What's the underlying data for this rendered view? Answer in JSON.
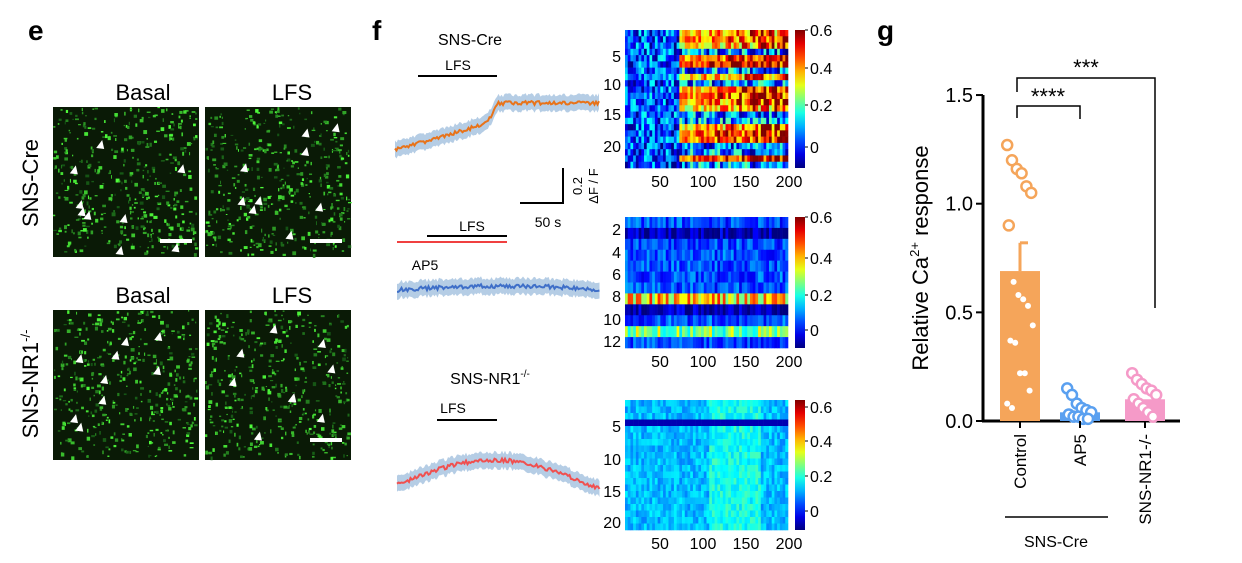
{
  "panels": {
    "e": {
      "letter": "e",
      "col_labels": [
        "Basal",
        "LFS"
      ],
      "row1_label": "SNS-Cre",
      "row2_label": "SNS-NR1",
      "row2_sup": "-/-"
    },
    "f": {
      "letter": "f",
      "traces": [
        {
          "title": "SNS-Cre",
          "stim": "LFS",
          "color": "#e8731a"
        },
        {
          "title": "",
          "stim": "LFS",
          "drug": "AP5",
          "color": "#3f6fc8"
        },
        {
          "title": "SNS-NR1",
          "title_sup": "-/-",
          "stim": "LFS",
          "color": "#f05050"
        }
      ],
      "scale_bar": {
        "y_value": "0.2",
        "y_unit": "ΔF / F",
        "x_label": "50 s"
      },
      "heatmaps": [
        {
          "rows": 22,
          "row_ticks": [
            "5",
            "10",
            "15",
            "20"
          ],
          "x_ticks": [
            "50",
            "100",
            "150",
            "200"
          ],
          "cbar_ticks": [
            "0",
            "0.2",
            "0.4",
            "0.6"
          ]
        },
        {
          "rows": 12,
          "row_ticks": [
            "2",
            "4",
            "6",
            "8",
            "10",
            "12"
          ],
          "x_ticks": [
            "50",
            "100",
            "150",
            "200"
          ],
          "cbar_ticks": [
            "0",
            "0.2",
            "0.4",
            "0.6"
          ]
        },
        {
          "rows": 20,
          "row_ticks": [
            "5",
            "10",
            "15",
            "20"
          ],
          "x_ticks": [
            "50",
            "100",
            "150",
            "200"
          ],
          "cbar_ticks": [
            "0",
            "0.2",
            "0.4",
            "0.6"
          ]
        }
      ]
    },
    "g": {
      "letter": "g",
      "group_label": "SNS-Cre"
    }
  },
  "chart_data": {
    "type": "bar",
    "title": "",
    "ylabel": "Relative Ca2+ response",
    "ylabel_main": "Relative Ca",
    "ylabel_sup": "2+",
    "ylabel_rest": " response",
    "ylim": [
      0,
      1.5
    ],
    "yticks": [
      "0.0",
      "0.5",
      "1.0",
      "1.5"
    ],
    "categories": [
      "Control",
      "AP5",
      "SNS-NR1-/-"
    ],
    "category_display": [
      {
        "main": "Control",
        "sup": ""
      },
      {
        "main": "AP5",
        "sup": ""
      },
      {
        "main": "SNS-NR1",
        "sup": "-/-"
      }
    ],
    "means": [
      0.69,
      0.04,
      0.1
    ],
    "sem_upper": [
      0.82,
      null,
      null
    ],
    "colors": [
      "#f5a55a",
      "#5aa0f0",
      "#f59ac8"
    ],
    "points": [
      [
        1.27,
        1.2,
        1.16,
        1.14,
        1.08,
        1.05,
        0.9,
        0.64,
        0.58,
        0.56,
        0.53,
        0.44,
        0.37,
        0.36,
        0.22,
        0.22,
        0.14,
        0.08,
        0.06
      ],
      [
        0.15,
        0.12,
        0.08,
        0.06,
        0.05,
        0.04,
        0.03,
        0.02,
        0.02,
        0.01,
        0.01
      ],
      [
        0.22,
        0.19,
        0.17,
        0.15,
        0.14,
        0.12,
        0.1,
        0.08,
        0.06,
        0.04,
        0.02
      ]
    ],
    "significance": [
      {
        "pair": [
          "Control",
          "AP5"
        ],
        "label": "****"
      },
      {
        "pair": [
          "Control",
          "SNS-NR1-/-"
        ],
        "label": "***"
      }
    ]
  }
}
